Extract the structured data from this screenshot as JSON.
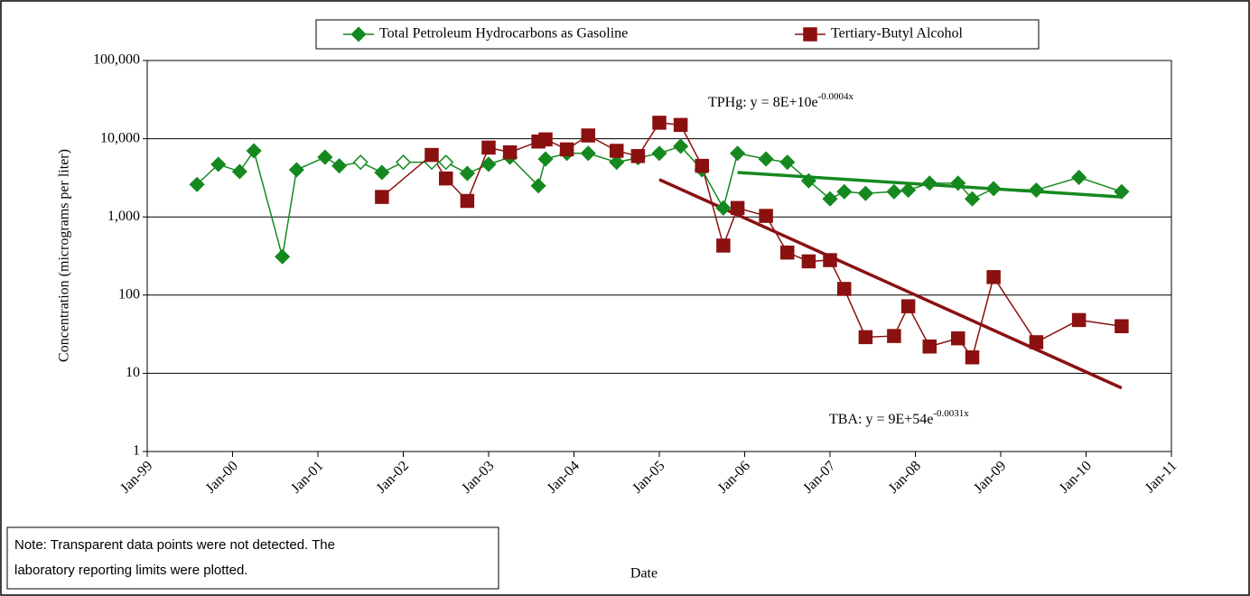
{
  "chart_data": {
    "type": "line",
    "y_label": "Concentration (micrograms per liter)",
    "x_label": "Date",
    "log_y": true,
    "grid": true,
    "legend": "top",
    "ylim": [
      1,
      100000
    ],
    "yticks": [
      1,
      10,
      100,
      {
        "value": 1000,
        "label": "1,000"
      },
      {
        "value": 10000,
        "label": "10,000"
      },
      {
        "value": 100000,
        "label": "100,000"
      }
    ],
    "xlim": [
      "1999-01",
      "2011-01"
    ],
    "xticks": [
      {
        "value": "1999-01",
        "label": "Jan-99"
      },
      {
        "value": "2000-01",
        "label": "Jan-00"
      },
      {
        "value": "2001-01",
        "label": "Jan-01"
      },
      {
        "value": "2002-01",
        "label": "Jan-02"
      },
      {
        "value": "2003-01",
        "label": "Jan-03"
      },
      {
        "value": "2004-01",
        "label": "Jan-04"
      },
      {
        "value": "2005-01",
        "label": "Jan-05"
      },
      {
        "value": "2006-01",
        "label": "Jan-06"
      },
      {
        "value": "2007-01",
        "label": "Jan-07"
      },
      {
        "value": "2008-01",
        "label": "Jan-08"
      },
      {
        "value": "2009-01",
        "label": "Jan-09"
      },
      {
        "value": "2010-01",
        "label": "Jan-10"
      },
      {
        "value": "2011-01",
        "label": "Jan-11"
      }
    ],
    "series": [
      {
        "name": "Total Petroleum Hydrocarbons as Gasoline",
        "color": "#15891f",
        "marker": "diamond",
        "x": [
          "1999-08",
          "1999-11",
          "2000-02",
          "2000-04",
          "2000-08",
          "2000-10",
          "2001-02",
          "2001-04",
          "2001-07",
          "2001-10",
          "2002-01",
          "2002-05",
          "2002-07",
          "2002-10",
          "2003-01",
          "2003-04",
          "2003-08",
          "2003-09",
          "2003-12",
          "2004-03",
          "2004-07",
          "2004-10",
          "2005-01",
          "2005-04",
          "2005-07",
          "2005-10",
          "2005-12",
          "2006-04",
          "2006-07",
          "2006-10",
          "2007-01",
          "2007-03",
          "2007-06",
          "2007-10",
          "2007-12",
          "2008-03",
          "2008-07",
          "2008-09",
          "2008-12",
          "2009-06",
          "2009-12",
          "2010-06"
        ],
        "values": [
          2600,
          4700,
          3800,
          7000,
          310,
          4000,
          5800,
          4500,
          5000,
          3700,
          5000,
          5000,
          5000,
          3600,
          4700,
          5800,
          2500,
          5500,
          6500,
          6500,
          5000,
          5700,
          6500,
          8000,
          4000,
          1300,
          6500,
          5500,
          5000,
          2900,
          1700,
          2100,
          2000,
          2100,
          2200,
          2700,
          2700,
          1700,
          2300,
          2200,
          3200,
          2100
        ],
        "detected": [
          true,
          true,
          true,
          true,
          true,
          true,
          true,
          true,
          false,
          true,
          false,
          false,
          false,
          true,
          true,
          true,
          true,
          true,
          true,
          true,
          true,
          true,
          true,
          true,
          true,
          true,
          true,
          true,
          true,
          true,
          true,
          true,
          true,
          true,
          true,
          true,
          true,
          true,
          true,
          true,
          true,
          true
        ]
      },
      {
        "name": "Tertiary-Butyl Alcohol",
        "color": "#8b1010",
        "marker": "square",
        "x": [
          "2001-10",
          "2002-05",
          "2002-07",
          "2002-10",
          "2003-01",
          "2003-04",
          "2003-08",
          "2003-09",
          "2003-12",
          "2004-03",
          "2004-07",
          "2004-10",
          "2005-01",
          "2005-04",
          "2005-07",
          "2005-10",
          "2005-12",
          "2006-04",
          "2006-07",
          "2006-10",
          "2007-01",
          "2007-03",
          "2007-06",
          "2007-10",
          "2007-12",
          "2008-03",
          "2008-07",
          "2008-09",
          "2008-12",
          "2009-06",
          "2009-12",
          "2010-06"
        ],
        "values": [
          1800,
          6200,
          3100,
          1600,
          7700,
          6700,
          9200,
          9800,
          7300,
          11000,
          7000,
          6000,
          16000,
          15000,
          4500,
          430,
          1300,
          1030,
          350,
          270,
          280,
          120,
          29,
          30,
          72,
          22,
          28,
          16,
          170,
          25,
          48,
          40
        ]
      }
    ],
    "trendlines": [
      {
        "color": "#15891f",
        "x": [
          "2005-12",
          "2010-06"
        ],
        "values": [
          3700,
          1800
        ]
      },
      {
        "color": "#8b1010",
        "x": [
          "2005-01",
          "2010-06"
        ],
        "values": [
          3000,
          6.5
        ]
      }
    ],
    "annotations": [
      {
        "text": "TPHg: y = 8E+10e",
        "superscript": "-0.0004x"
      },
      {
        "text": "TBA: y = 9E+54e",
        "superscript": "-0.0031x"
      }
    ],
    "note": [
      "Note: Transparent data points were not detected.  The",
      "laboratory reporting limits were plotted."
    ]
  }
}
